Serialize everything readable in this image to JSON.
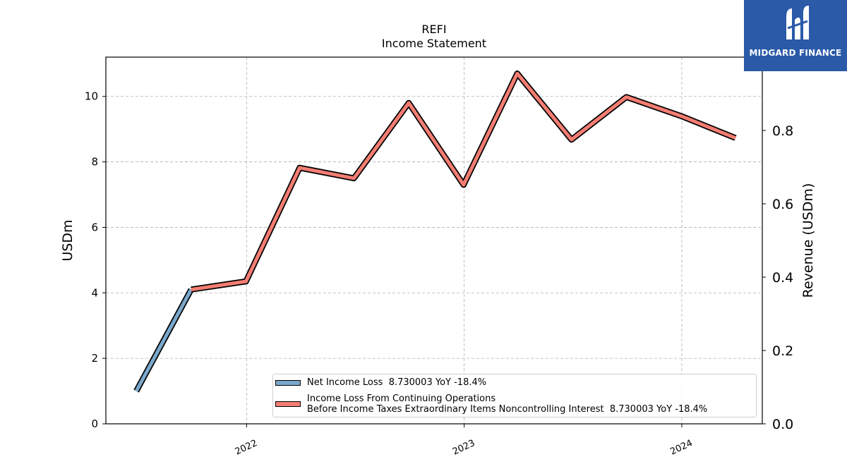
{
  "brand": {
    "name": "MIDGARD FINANCE",
    "background": "#2a5aa8"
  },
  "chart_data": {
    "type": "line",
    "title": "REFI",
    "subtitle": "Income Statement",
    "ylabel": "USDm",
    "ylabel_right": "Revenue (USDm)",
    "ylim": [
      0,
      11.2
    ],
    "ylim_right": [
      0,
      1.0
    ],
    "yticks": [
      0,
      2,
      4,
      6,
      8,
      10
    ],
    "yticks_right": [
      0.0,
      0.2,
      0.4,
      0.6,
      0.8
    ],
    "ytick_labels_right": [
      "0.0",
      "0.2",
      "0.4",
      "0.6",
      "0.8"
    ],
    "xlim": [
      "2021-05-10",
      "2024-05-15"
    ],
    "xticks": [
      "2022-01-01",
      "2023-01-01",
      "2024-01-01"
    ],
    "xtick_labels": [
      "2022",
      "2023",
      "2024"
    ],
    "grid": true,
    "legend_position": "lower-right",
    "series": [
      {
        "name": "Net Income Loss  8.730003 YoY -18.4%",
        "color": "#7aa8cc",
        "points": [
          {
            "x": "2021-06-30",
            "y": 1.0
          },
          {
            "x": "2021-09-30",
            "y": 4.1
          }
        ]
      },
      {
        "name": "Income Loss From Continuing Operations\nBefore Income Taxes Extraordinary Items Noncontrolling Interest  8.730003 YoY -18.4%",
        "color": "#f47d73",
        "points": [
          {
            "x": "2021-09-30",
            "y": 4.1
          },
          {
            "x": "2021-12-31",
            "y": 4.35
          },
          {
            "x": "2022-03-31",
            "y": 7.82
          },
          {
            "x": "2022-06-30",
            "y": 7.5
          },
          {
            "x": "2022-09-30",
            "y": 9.8
          },
          {
            "x": "2022-12-31",
            "y": 7.3
          },
          {
            "x": "2023-03-31",
            "y": 10.7
          },
          {
            "x": "2023-06-30",
            "y": 8.68
          },
          {
            "x": "2023-09-30",
            "y": 9.98
          },
          {
            "x": "2023-12-31",
            "y": 9.4
          },
          {
            "x": "2024-03-31",
            "y": 8.73
          }
        ]
      }
    ]
  }
}
